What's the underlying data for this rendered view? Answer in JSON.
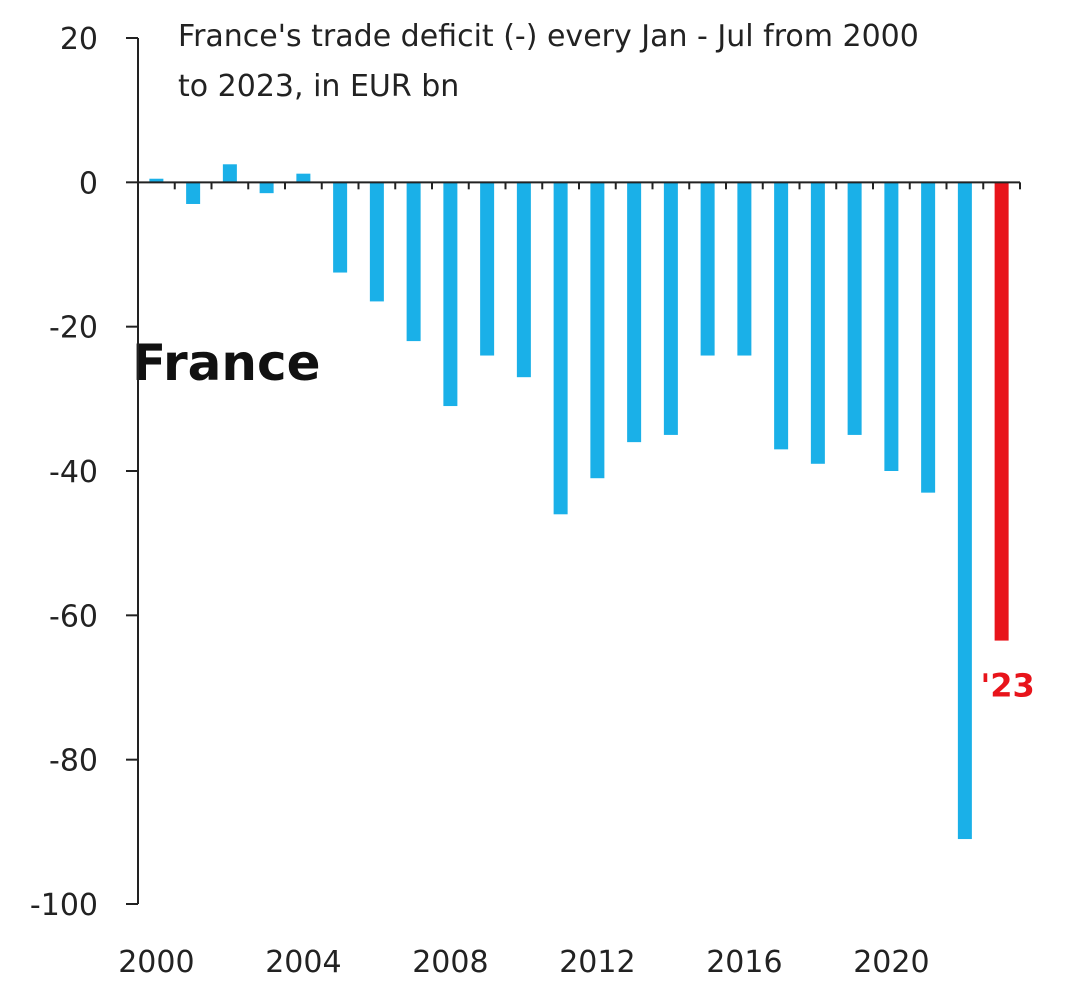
{
  "chart_data": {
    "type": "bar",
    "title_line1": "France's trade deficit (-) every Jan - Jul from 2000",
    "title_line2": "to 2023,  in EUR bn",
    "country_label": "France",
    "annotation": "'23",
    "xlabel": "",
    "ylabel": "",
    "ylim": [
      -100,
      20
    ],
    "y_ticks": [
      20,
      0,
      -20,
      -40,
      -60,
      -80,
      -100
    ],
    "x_tick_years": [
      2000,
      2004,
      2008,
      2012,
      2016,
      2020
    ],
    "x": [
      2000,
      2001,
      2002,
      2003,
      2004,
      2005,
      2006,
      2007,
      2008,
      2009,
      2010,
      2011,
      2012,
      2013,
      2014,
      2015,
      2016,
      2017,
      2018,
      2019,
      2020,
      2021,
      2022,
      2023
    ],
    "values": [
      0.5,
      -3,
      2.5,
      -1.5,
      1.2,
      -12.5,
      -16.5,
      -22,
      -31,
      -24,
      -27,
      -46,
      -41,
      -36,
      -35,
      -24,
      -24,
      -37,
      -39,
      -35,
      -40,
      -43,
      -91,
      -63.5
    ],
    "highlight_year": 2023,
    "grid": false,
    "colors": {
      "bar": "#1AB0E8",
      "highlight": "#E8141B",
      "axis": "#222222"
    }
  }
}
